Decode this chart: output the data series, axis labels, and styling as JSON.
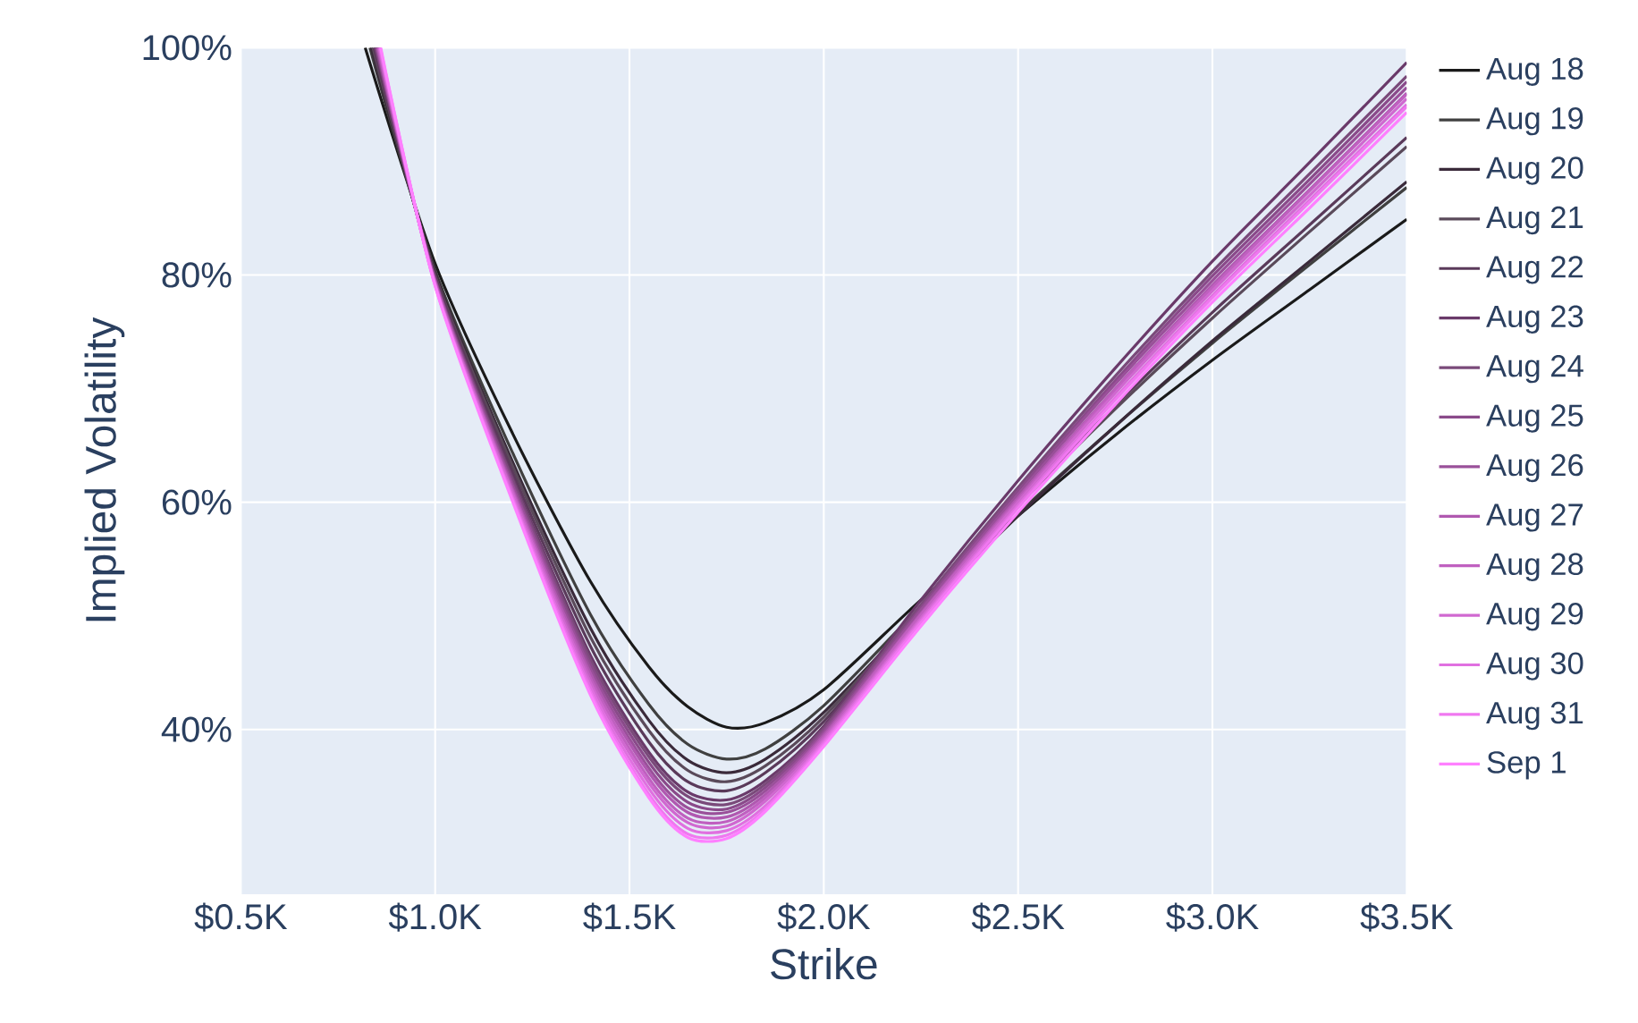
{
  "chart_data": {
    "type": "line",
    "xlabel": "Strike",
    "ylabel": "Implied Volatility",
    "xlim": [
      500,
      3500
    ],
    "ylim": [
      25.5,
      100
    ],
    "xticks": [
      {
        "value": 500,
        "label": "$0.5K"
      },
      {
        "value": 1000,
        "label": "$1.0K"
      },
      {
        "value": 1500,
        "label": "$1.5K"
      },
      {
        "value": 2000,
        "label": "$2.0K"
      },
      {
        "value": 2500,
        "label": "$2.5K"
      },
      {
        "value": 3000,
        "label": "$3.0K"
      },
      {
        "value": 3500,
        "label": "$3.5K"
      }
    ],
    "yticks": [
      {
        "value": 40,
        "label": "40%"
      },
      {
        "value": 60,
        "label": "60%"
      },
      {
        "value": 80,
        "label": "80%"
      },
      {
        "value": 100,
        "label": "100%"
      }
    ],
    "grid": true,
    "legend": "right",
    "marker": "none",
    "series": [
      {
        "name": "Aug 18",
        "color": "#1a1a1a",
        "x": [
          820,
          1000,
          1200,
          1400,
          1550,
          1650,
          1750,
          1850,
          2000,
          2250,
          2500,
          2750,
          3000,
          3250,
          3500
        ],
        "values": [
          100,
          81,
          66,
          53,
          45.5,
          42,
          40.2,
          40.6,
          43.5,
          51.4,
          58.8,
          65.9,
          72.5,
          78.7,
          84.9
        ]
      },
      {
        "name": "Aug 19",
        "color": "#404040",
        "x": [
          832,
          1000,
          1200,
          1400,
          1550,
          1650,
          1750,
          1850,
          2000,
          2250,
          2500,
          2750,
          3000,
          3250,
          3500
        ],
        "values": [
          100,
          80.4,
          64.3,
          50.1,
          42.2,
          38.7,
          37.4,
          38.3,
          42.1,
          50.8,
          59.0,
          66.7,
          74.0,
          80.9,
          87.7
        ]
      },
      {
        "name": "Aug 20",
        "color": "#3a2a3a",
        "x": [
          836,
          1000,
          1200,
          1400,
          1550,
          1650,
          1750,
          1850,
          2000,
          2250,
          2500,
          2750,
          3000,
          3250,
          3500
        ],
        "values": [
          100,
          80.2,
          63.5,
          48.9,
          40.8,
          37.3,
          36.2,
          37.4,
          41.5,
          50.4,
          58.8,
          66.7,
          74.2,
          81.2,
          88.2
        ]
      },
      {
        "name": "Aug 21",
        "color": "#5a4a5a",
        "x": [
          840,
          1000,
          1200,
          1400,
          1550,
          1650,
          1750,
          1850,
          2000,
          2250,
          2500,
          2750,
          3000,
          3250,
          3500
        ],
        "values": [
          100,
          80.0,
          63.1,
          48.1,
          39.9,
          36.4,
          35.4,
          36.8,
          41.1,
          50.6,
          59.7,
          68.2,
          76.2,
          83.8,
          91.3
        ]
      },
      {
        "name": "Aug 22",
        "color": "#5a3a5a",
        "x": [
          843,
          1000,
          1200,
          1400,
          1550,
          1650,
          1750,
          1850,
          2000,
          2250,
          2500,
          2750,
          3000,
          3250,
          3500
        ],
        "values": [
          100,
          79.9,
          62.6,
          47.3,
          38.9,
          35.4,
          34.6,
          36.2,
          40.7,
          50.5,
          59.7,
          68.5,
          76.7,
          84.4,
          92.1
        ]
      },
      {
        "name": "Aug 23",
        "color": "#6a3a6a",
        "x": [
          846,
          1000,
          1200,
          1400,
          1550,
          1650,
          1750,
          1850,
          2000,
          2250,
          2500,
          2750,
          3000,
          3250,
          3500
        ],
        "values": [
          100,
          79.7,
          62.1,
          46.5,
          38.0,
          34.5,
          33.8,
          35.5,
          40.3,
          51.4,
          61.9,
          71.8,
          81.2,
          89.9,
          98.7
        ]
      },
      {
        "name": "Aug 24",
        "color": "#7a4a7a",
        "x": [
          848,
          1000,
          1200,
          1400,
          1550,
          1650,
          1750,
          1850,
          2000,
          2250,
          2500,
          2750,
          3000,
          3250,
          3500
        ],
        "values": [
          100,
          79.6,
          61.9,
          46.1,
          37.6,
          34.1,
          33.4,
          35.2,
          40.1,
          51.0,
          61.3,
          71.1,
          80.3,
          88.9,
          97.5
        ]
      },
      {
        "name": "Aug 25",
        "color": "#8a4a8a",
        "x": [
          849,
          1000,
          1200,
          1400,
          1550,
          1650,
          1750,
          1850,
          2000,
          2250,
          2500,
          2750,
          3000,
          3250,
          3500
        ],
        "values": [
          100,
          79.5,
          61.6,
          45.7,
          37.1,
          33.6,
          33.0,
          34.9,
          39.9,
          50.7,
          61.0,
          70.7,
          79.9,
          88.4,
          97.0
        ]
      },
      {
        "name": "Aug 26",
        "color": "#9a509a",
        "x": [
          851,
          1000,
          1200,
          1400,
          1550,
          1650,
          1750,
          1850,
          2000,
          2250,
          2500,
          2750,
          3000,
          3250,
          3500
        ],
        "values": [
          100,
          79.5,
          61.4,
          45.3,
          36.6,
          33.1,
          32.7,
          34.6,
          39.7,
          50.5,
          60.7,
          70.4,
          79.5,
          88.0,
          96.5
        ]
      },
      {
        "name": "Aug 27",
        "color": "#b058b0",
        "x": [
          852,
          1000,
          1200,
          1400,
          1550,
          1650,
          1750,
          1850,
          2000,
          2250,
          2500,
          2750,
          3000,
          3250,
          3500
        ],
        "values": [
          100,
          79.4,
          61.1,
          44.9,
          36.2,
          32.7,
          32.3,
          34.3,
          39.5,
          50.2,
          60.4,
          70.0,
          79.1,
          87.5,
          96.0
        ]
      },
      {
        "name": "Aug 28",
        "color": "#c060c0",
        "x": [
          854,
          1000,
          1200,
          1400,
          1550,
          1650,
          1750,
          1850,
          2000,
          2250,
          2500,
          2750,
          3000,
          3250,
          3500
        ],
        "values": [
          100,
          79.3,
          60.9,
          44.5,
          35.7,
          32.2,
          31.9,
          34.0,
          39.3,
          50.1,
          60.2,
          69.9,
          78.9,
          87.4,
          95.9
        ]
      },
      {
        "name": "Aug 29",
        "color": "#d068d0",
        "x": [
          856,
          1000,
          1200,
          1400,
          1550,
          1650,
          1750,
          1850,
          2000,
          2250,
          2500,
          2750,
          3000,
          3250,
          3500
        ],
        "values": [
          100,
          79.2,
          60.7,
          44.1,
          35.3,
          31.8,
          31.5,
          33.7,
          39.1,
          49.8,
          60.0,
          69.6,
          78.6,
          87.0,
          95.5
        ]
      },
      {
        "name": "Aug 30",
        "color": "#e070e0",
        "x": [
          857,
          1000,
          1200,
          1400,
          1550,
          1650,
          1750,
          1850,
          2000,
          2250,
          2500,
          2750,
          3000,
          3250,
          3500
        ],
        "values": [
          100,
          79.1,
          60.4,
          43.7,
          34.8,
          31.3,
          31.1,
          33.3,
          38.9,
          49.6,
          59.7,
          69.2,
          78.2,
          86.6,
          95.0
        ]
      },
      {
        "name": "Aug 31",
        "color": "#f078f0",
        "x": [
          859,
          1000,
          1200,
          1400,
          1550,
          1650,
          1750,
          1850,
          2000,
          2250,
          2500,
          2750,
          3000,
          3250,
          3500
        ],
        "values": [
          100,
          79.1,
          60.2,
          43.3,
          34.3,
          30.8,
          30.7,
          33.0,
          38.7,
          49.4,
          59.5,
          69.0,
          78.0,
          86.4,
          94.8
        ]
      },
      {
        "name": "Sep 1",
        "color": "#ff80ff",
        "x": [
          860,
          1000,
          1200,
          1400,
          1550,
          1650,
          1750,
          1850,
          2000,
          2250,
          2500,
          2750,
          3000,
          3250,
          3500
        ],
        "values": [
          100,
          79,
          60,
          43,
          34,
          30.5,
          30.4,
          32.8,
          38.5,
          49.1,
          59.1,
          68.6,
          77.6,
          85.9,
          94.3
        ]
      }
    ]
  }
}
